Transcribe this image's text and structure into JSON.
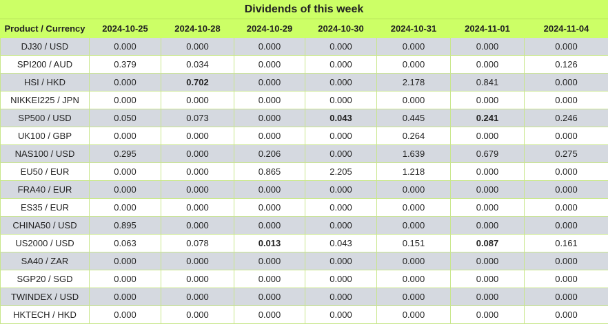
{
  "title": "Dividends of this week",
  "columns": [
    "Product / Currency",
    "2024-10-25",
    "2024-10-28",
    "2024-10-29",
    "2024-10-30",
    "2024-10-31",
    "2024-11-01",
    "2024-11-04"
  ],
  "rows": [
    {
      "product": "DJ30 / USD",
      "values": [
        "0.000",
        "0.000",
        "0.000",
        "0.000",
        "0.000",
        "0.000",
        "0.000"
      ],
      "bold": []
    },
    {
      "product": "SPI200 / AUD",
      "values": [
        "0.379",
        "0.034",
        "0.000",
        "0.000",
        "0.000",
        "0.000",
        "0.126"
      ],
      "bold": []
    },
    {
      "product": "HSI / HKD",
      "values": [
        "0.000",
        "0.702",
        "0.000",
        "0.000",
        "2.178",
        "0.841",
        "0.000"
      ],
      "bold": [
        1
      ]
    },
    {
      "product": "NIKKEI225 / JPN",
      "values": [
        "0.000",
        "0.000",
        "0.000",
        "0.000",
        "0.000",
        "0.000",
        "0.000"
      ],
      "bold": []
    },
    {
      "product": "SP500 / USD",
      "values": [
        "0.050",
        "0.073",
        "0.000",
        "0.043",
        "0.445",
        "0.241",
        "0.246"
      ],
      "bold": [
        3,
        5
      ]
    },
    {
      "product": "UK100 / GBP",
      "values": [
        "0.000",
        "0.000",
        "0.000",
        "0.000",
        "0.264",
        "0.000",
        "0.000"
      ],
      "bold": []
    },
    {
      "product": "NAS100 / USD",
      "values": [
        "0.295",
        "0.000",
        "0.206",
        "0.000",
        "1.639",
        "0.679",
        "0.275"
      ],
      "bold": []
    },
    {
      "product": "EU50 / EUR",
      "values": [
        "0.000",
        "0.000",
        "0.865",
        "2.205",
        "1.218",
        "0.000",
        "0.000"
      ],
      "bold": []
    },
    {
      "product": "FRA40 / EUR",
      "values": [
        "0.000",
        "0.000",
        "0.000",
        "0.000",
        "0.000",
        "0.000",
        "0.000"
      ],
      "bold": []
    },
    {
      "product": "ES35 / EUR",
      "values": [
        "0.000",
        "0.000",
        "0.000",
        "0.000",
        "0.000",
        "0.000",
        "0.000"
      ],
      "bold": []
    },
    {
      "product": "CHINA50 / USD",
      "values": [
        "0.895",
        "0.000",
        "0.000",
        "0.000",
        "0.000",
        "0.000",
        "0.000"
      ],
      "bold": []
    },
    {
      "product": "US2000 / USD",
      "values": [
        "0.063",
        "0.078",
        "0.013",
        "0.043",
        "0.151",
        "0.087",
        "0.161"
      ],
      "bold": [
        2,
        5
      ]
    },
    {
      "product": "SA40 / ZAR",
      "values": [
        "0.000",
        "0.000",
        "0.000",
        "0.000",
        "0.000",
        "0.000",
        "0.000"
      ],
      "bold": []
    },
    {
      "product": "SGP20 / SGD",
      "values": [
        "0.000",
        "0.000",
        "0.000",
        "0.000",
        "0.000",
        "0.000",
        "0.000"
      ],
      "bold": []
    },
    {
      "product": "TWINDEX / USD",
      "values": [
        "0.000",
        "0.000",
        "0.000",
        "0.000",
        "0.000",
        "0.000",
        "0.000"
      ],
      "bold": []
    },
    {
      "product": "HKTECH / HKD",
      "values": [
        "0.000",
        "0.000",
        "0.000",
        "0.000",
        "0.000",
        "0.000",
        "0.000"
      ],
      "bold": []
    }
  ],
  "colors": {
    "header_bg": "#ccff66",
    "row_alt_bg": "#d5d9e0",
    "row_bg": "#ffffff",
    "border": "#c8e68a"
  }
}
